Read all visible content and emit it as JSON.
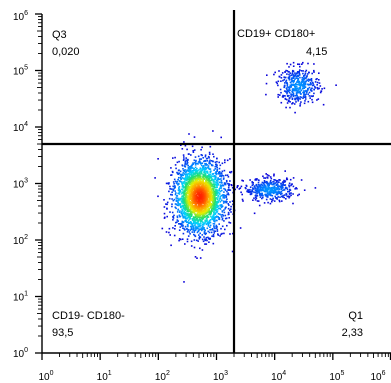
{
  "chart_data": {
    "type": "scatter",
    "title": "",
    "xlabel": "",
    "ylabel": "",
    "x_scale": "log",
    "y_scale": "log",
    "xlim": [
      1,
      1000000
    ],
    "ylim": [
      1,
      1000000
    ],
    "x_ticks": [
      {
        "base": "10",
        "exp": "0"
      },
      {
        "base": "10",
        "exp": "1"
      },
      {
        "base": "10",
        "exp": "2"
      },
      {
        "base": "10",
        "exp": "3"
      },
      {
        "base": "10",
        "exp": "4"
      },
      {
        "base": "10",
        "exp": "5"
      },
      {
        "base": "10",
        "exp": "6"
      }
    ],
    "y_ticks": [
      {
        "base": "10",
        "exp": "0"
      },
      {
        "base": "10",
        "exp": "1"
      },
      {
        "base": "10",
        "exp": "2"
      },
      {
        "base": "10",
        "exp": "3"
      },
      {
        "base": "10",
        "exp": "4"
      },
      {
        "base": "10",
        "exp": "5"
      },
      {
        "base": "10",
        "exp": "6"
      }
    ],
    "gates": {
      "x": 2000,
      "y": 5000
    },
    "quadrants": [
      {
        "id": "q-top-left",
        "name": "Q3",
        "value": "0,020",
        "position": "top-left"
      },
      {
        "id": "q-top-right",
        "name": "CD19+ CD180+",
        "value": "4,15",
        "position": "top-right"
      },
      {
        "id": "q-bottom-left",
        "name": "CD19- CD180-",
        "value": "93,5",
        "position": "bottom-left"
      },
      {
        "id": "q-bottom-right",
        "name": "Q1",
        "value": "2,33",
        "position": "bottom-right"
      }
    ],
    "populations": [
      {
        "name": "",
        "x_center": 500,
        "y_center": 600,
        "x_spread_log": 0.22,
        "y_spread_log": 0.32,
        "count": 2600
      },
      {
        "name": "",
        "x_center": 8000,
        "y_center": 800,
        "x_spread_log": 0.22,
        "y_spread_log": 0.1,
        "count": 420
      },
      {
        "name": "",
        "x_center": 25000,
        "y_center": 55000,
        "x_spread_log": 0.18,
        "y_spread_log": 0.16,
        "count": 420
      }
    ],
    "colormap": [
      "#0b00d9",
      "#0077ff",
      "#00d5ff",
      "#22e066",
      "#e8ef00",
      "#ff9900",
      "#ff2000"
    ],
    "grid": false,
    "legend": "none"
  }
}
